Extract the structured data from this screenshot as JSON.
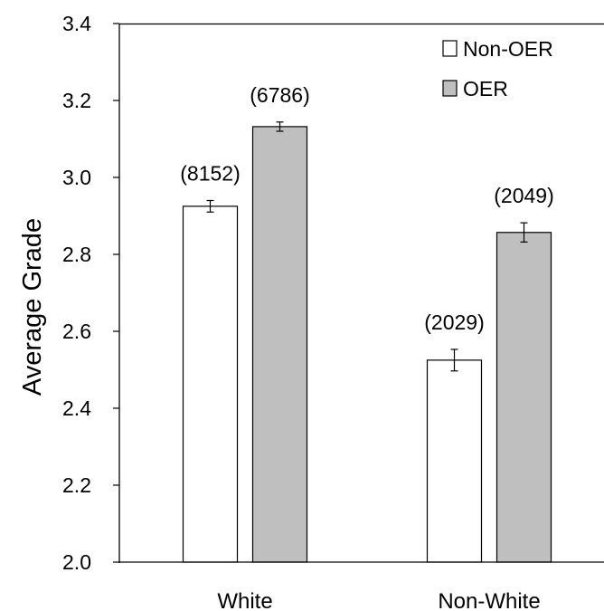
{
  "chart_data": {
    "type": "bar",
    "categories": [
      "White",
      "Non-White"
    ],
    "series": [
      {
        "name": "Non-OER",
        "values": [
          2.925,
          2.525
        ],
        "errors": [
          0.015,
          0.028
        ],
        "labels": [
          "(8152)",
          "(2029)"
        ],
        "color": "#ffffff"
      },
      {
        "name": "OER",
        "values": [
          3.132,
          2.857
        ],
        "errors": [
          0.012,
          0.025
        ],
        "labels": [
          "(6786)",
          "(2049)"
        ],
        "color": "#bfbfbf"
      }
    ],
    "ylabel": "Average Grade",
    "ylim": [
      2.0,
      3.4
    ],
    "yticks": [
      "2.0",
      "2.2",
      "2.4",
      "2.6",
      "2.8",
      "3.0",
      "3.2",
      "3.4"
    ],
    "legend_position": "top-right",
    "grid": false,
    "bar_outline_color": "#000000"
  }
}
